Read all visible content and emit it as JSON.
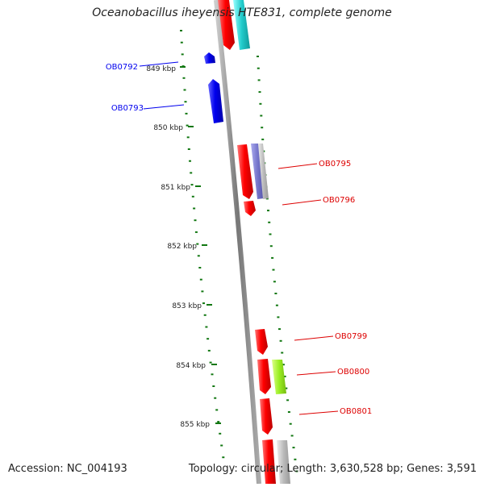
{
  "title": "Oceanobacillus iheyensis HTE831, complete genome",
  "accession": "Accession: NC_004193",
  "summary": "Topology: circular; Length: 3,630,528 bp; Genes: 3,591",
  "ticks": [
    "849 kbp",
    "850 kbp",
    "851 kbp",
    "852 kbp",
    "853 kbp",
    "854 kbp",
    "855 kbp"
  ],
  "gene_labels": [
    "OB0792",
    "OB0793",
    "OB0795",
    "OB0796",
    "OB0799",
    "OB0800",
    "OB0801"
  ],
  "colors": {
    "reverse_strand": "#0000ee",
    "forward_strand": "#ee0000",
    "backbone": "#888888",
    "tick_marks": "#117711",
    "cyan_feature": "#22cccc",
    "purple_feature": "#7777cc",
    "green_feature": "#99ee22",
    "grey_feature": "#bbbbbb"
  }
}
